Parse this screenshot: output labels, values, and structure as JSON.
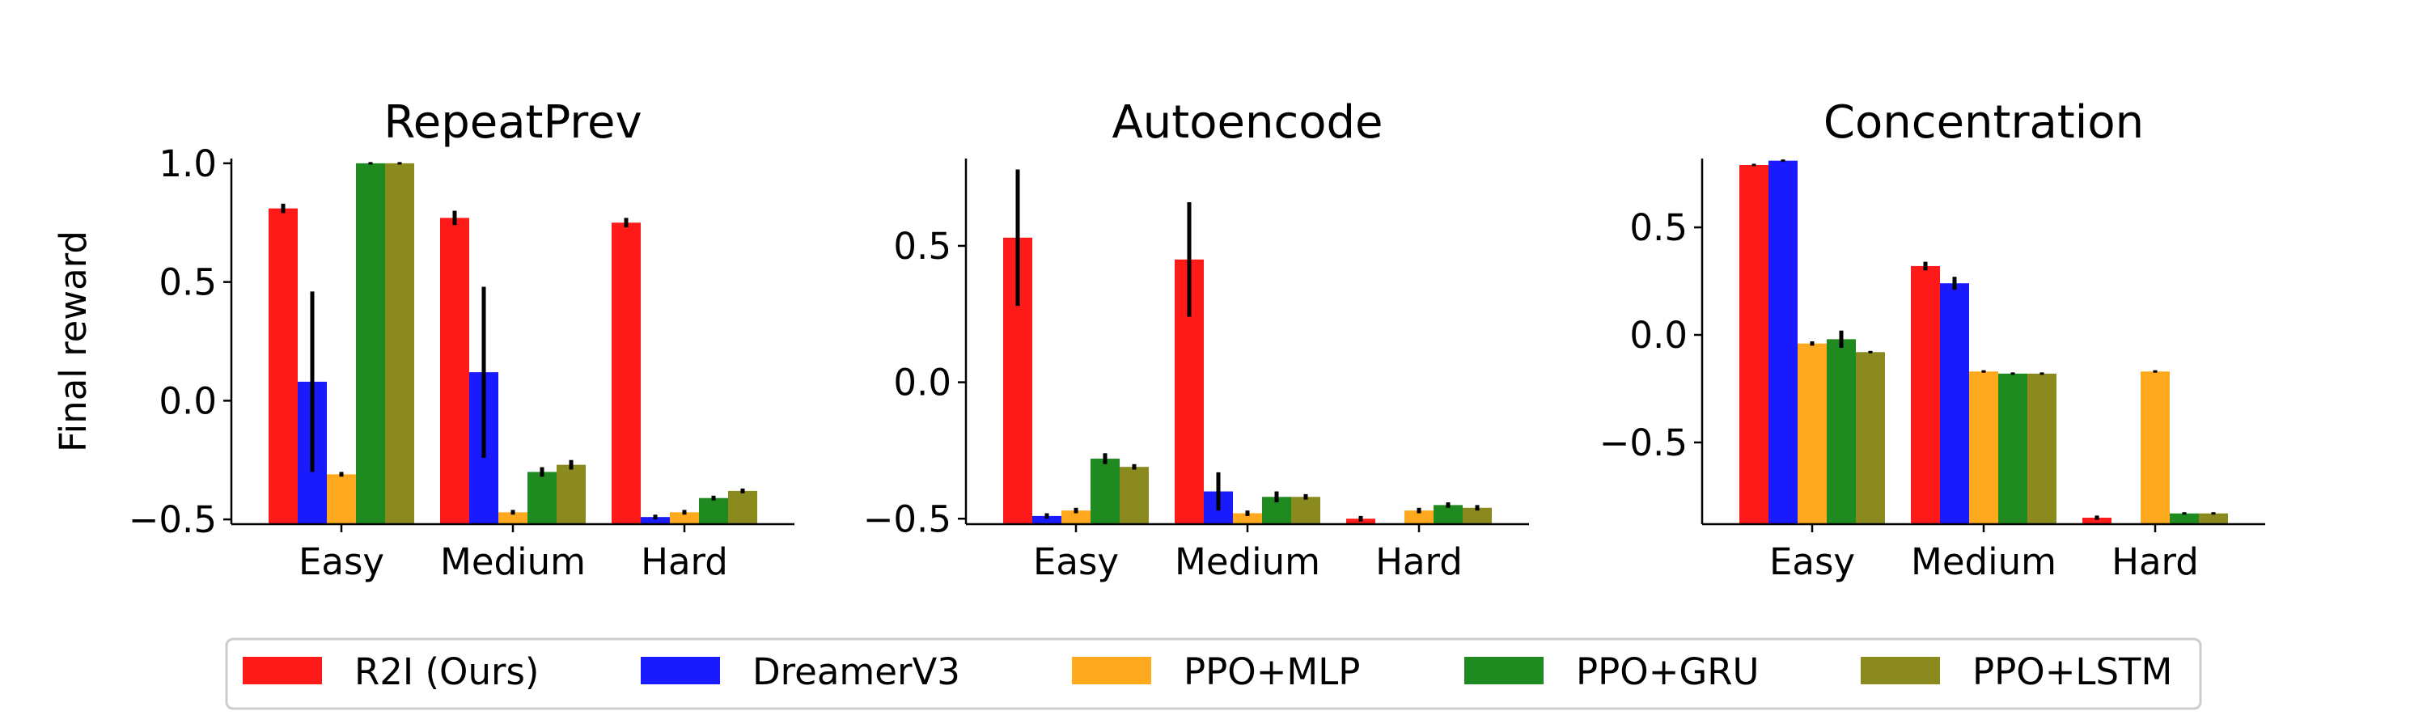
{
  "figure": {
    "ylabel": "Final reward",
    "legend": [
      {
        "label": "R2I (Ours)",
        "color": "#ff1a1a"
      },
      {
        "label": "DreamerV3",
        "color": "#1a1aff"
      },
      {
        "label": "PPO+MLP",
        "color": "#ffa91f"
      },
      {
        "label": "PPO+GRU",
        "color": "#1f8a1f"
      },
      {
        "label": "PPO+LSTM",
        "color": "#8a8a1f"
      }
    ],
    "legend_placement": "bottom-center"
  },
  "chart_data": [
    {
      "type": "bar",
      "title": "RepeatPrev",
      "xlabel": "",
      "ylabel": "Final reward",
      "categories": [
        "Easy",
        "Medium",
        "Hard"
      ],
      "ylim": [
        -0.52,
        1.02
      ],
      "yticks": [
        -0.5,
        0.0,
        0.5,
        1.0
      ],
      "ytick_labels": [
        "−0.5",
        "0.0",
        "0.5",
        "1.0"
      ],
      "series": [
        {
          "name": "R2I (Ours)",
          "values": [
            0.81,
            0.77,
            0.75
          ],
          "errors": [
            0.02,
            0.03,
            0.02
          ]
        },
        {
          "name": "DreamerV3",
          "values": [
            0.08,
            0.12,
            -0.49
          ],
          "errors": [
            0.38,
            0.36,
            0.01
          ]
        },
        {
          "name": "PPO+MLP",
          "values": [
            -0.31,
            -0.47,
            -0.47
          ],
          "errors": [
            0.01,
            0.01,
            0.01
          ]
        },
        {
          "name": "PPO+GRU",
          "values": [
            1.0,
            -0.3,
            -0.41
          ],
          "errors": [
            0.0,
            0.02,
            0.01
          ]
        },
        {
          "name": "PPO+LSTM",
          "values": [
            1.0,
            -0.27,
            -0.38
          ],
          "errors": [
            0.0,
            0.02,
            0.01
          ]
        }
      ]
    },
    {
      "type": "bar",
      "title": "Autoencode",
      "xlabel": "",
      "ylabel": "",
      "categories": [
        "Easy",
        "Medium",
        "Hard"
      ],
      "ylim": [
        -0.52,
        0.82
      ],
      "yticks": [
        -0.5,
        0.0,
        0.5
      ],
      "ytick_labels": [
        "−0.5",
        "0.0",
        "0.5"
      ],
      "series": [
        {
          "name": "R2I (Ours)",
          "values": [
            0.53,
            0.45,
            -0.5
          ],
          "errors": [
            0.25,
            0.21,
            0.01
          ]
        },
        {
          "name": "DreamerV3",
          "values": [
            -0.49,
            -0.4,
            null
          ],
          "errors": [
            0.01,
            0.07,
            null
          ]
        },
        {
          "name": "PPO+MLP",
          "values": [
            -0.47,
            -0.48,
            -0.47
          ],
          "errors": [
            0.01,
            0.01,
            0.01
          ]
        },
        {
          "name": "PPO+GRU",
          "values": [
            -0.28,
            -0.42,
            -0.45
          ],
          "errors": [
            0.02,
            0.02,
            0.01
          ]
        },
        {
          "name": "PPO+LSTM",
          "values": [
            -0.31,
            -0.42,
            -0.46
          ],
          "errors": [
            0.01,
            0.01,
            0.01
          ]
        }
      ]
    },
    {
      "type": "bar",
      "title": "Concentration",
      "xlabel": "",
      "ylabel": "",
      "categories": [
        "Easy",
        "Medium",
        "Hard"
      ],
      "ylim": [
        -0.88,
        0.82
      ],
      "yticks": [
        -0.5,
        0.0,
        0.5
      ],
      "ytick_labels": [
        "−0.5",
        "0.0",
        "0.5"
      ],
      "series": [
        {
          "name": "R2I (Ours)",
          "values": [
            0.79,
            0.32,
            -0.85
          ],
          "errors": [
            0.0,
            0.02,
            0.01
          ]
        },
        {
          "name": "DreamerV3",
          "values": [
            0.81,
            0.24,
            null
          ],
          "errors": [
            0.0,
            0.03,
            null
          ]
        },
        {
          "name": "PPO+MLP",
          "values": [
            -0.04,
            -0.17,
            -0.17
          ],
          "errors": [
            0.01,
            0.0,
            0.0
          ]
        },
        {
          "name": "PPO+GRU",
          "values": [
            -0.02,
            -0.18,
            -0.83
          ],
          "errors": [
            0.04,
            0.0,
            0.0
          ]
        },
        {
          "name": "PPO+LSTM",
          "values": [
            -0.08,
            -0.18,
            -0.83
          ],
          "errors": [
            0.0,
            0.0,
            0.0
          ]
        }
      ]
    }
  ]
}
